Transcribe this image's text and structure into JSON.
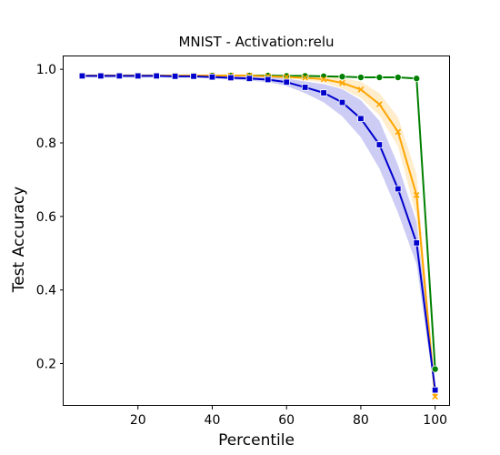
{
  "chart_data": {
    "type": "line",
    "title": "MNIST - Activation:relu",
    "xlabel": "Percentile",
    "ylabel": "Test Accuracy",
    "xlim": [
      0,
      104
    ],
    "ylim": [
      0.085,
      1.035
    ],
    "xticks": [
      20,
      40,
      60,
      80,
      100
    ],
    "yticks": [
      0.2,
      0.4,
      0.6,
      0.8,
      1.0
    ],
    "xtick_labels": [
      "20",
      "40",
      "60",
      "80",
      "100"
    ],
    "ytick_labels": [
      "0.2",
      "0.4",
      "0.6",
      "0.8",
      "1.0"
    ],
    "grid": false,
    "legend": "none",
    "x": [
      5,
      10,
      15,
      20,
      25,
      30,
      35,
      40,
      45,
      50,
      55,
      60,
      65,
      70,
      75,
      80,
      85,
      90,
      95,
      100
    ],
    "series": [
      {
        "color": "#008000",
        "marker": "circle",
        "values": [
          0.983,
          0.983,
          0.983,
          0.983,
          0.983,
          0.983,
          0.983,
          0.983,
          0.983,
          0.983,
          0.983,
          0.982,
          0.982,
          0.981,
          0.98,
          0.978,
          0.978,
          0.978,
          0.975,
          0.185
        ],
        "lower": [
          0.981,
          0.981,
          0.981,
          0.981,
          0.981,
          0.981,
          0.981,
          0.981,
          0.981,
          0.981,
          0.981,
          0.98,
          0.98,
          0.979,
          0.978,
          0.976,
          0.976,
          0.976,
          0.972,
          0.175
        ],
        "upper": [
          0.985,
          0.985,
          0.985,
          0.985,
          0.985,
          0.985,
          0.985,
          0.985,
          0.985,
          0.985,
          0.985,
          0.984,
          0.984,
          0.983,
          0.982,
          0.98,
          0.98,
          0.98,
          0.978,
          0.195
        ]
      },
      {
        "color": "#ffa500",
        "marker": "x",
        "values": [
          0.983,
          0.983,
          0.983,
          0.983,
          0.983,
          0.983,
          0.983,
          0.983,
          0.983,
          0.983,
          0.981,
          0.979,
          0.977,
          0.973,
          0.963,
          0.945,
          0.905,
          0.83,
          0.658,
          0.11
        ],
        "lower": [
          0.98,
          0.98,
          0.98,
          0.98,
          0.98,
          0.98,
          0.98,
          0.98,
          0.98,
          0.98,
          0.978,
          0.975,
          0.971,
          0.964,
          0.948,
          0.922,
          0.875,
          0.79,
          0.6,
          0.092
        ],
        "upper": [
          0.986,
          0.986,
          0.986,
          0.986,
          0.986,
          0.986,
          0.986,
          0.986,
          0.986,
          0.986,
          0.984,
          0.983,
          0.982,
          0.981,
          0.977,
          0.966,
          0.935,
          0.87,
          0.715,
          0.128
        ]
      },
      {
        "color": "#0000cd",
        "marker": "square",
        "values": [
          0.982,
          0.982,
          0.982,
          0.982,
          0.982,
          0.981,
          0.981,
          0.979,
          0.977,
          0.975,
          0.972,
          0.965,
          0.951,
          0.936,
          0.91,
          0.866,
          0.795,
          0.675,
          0.528,
          0.128
        ],
        "lower": [
          0.979,
          0.977,
          0.978,
          0.977,
          0.978,
          0.977,
          0.977,
          0.975,
          0.972,
          0.969,
          0.965,
          0.955,
          0.935,
          0.91,
          0.872,
          0.815,
          0.73,
          0.61,
          0.47,
          0.112
        ],
        "upper": [
          0.985,
          0.986,
          0.986,
          0.986,
          0.986,
          0.985,
          0.985,
          0.983,
          0.982,
          0.981,
          0.979,
          0.975,
          0.967,
          0.96,
          0.946,
          0.916,
          0.86,
          0.74,
          0.585,
          0.144
        ]
      }
    ]
  }
}
